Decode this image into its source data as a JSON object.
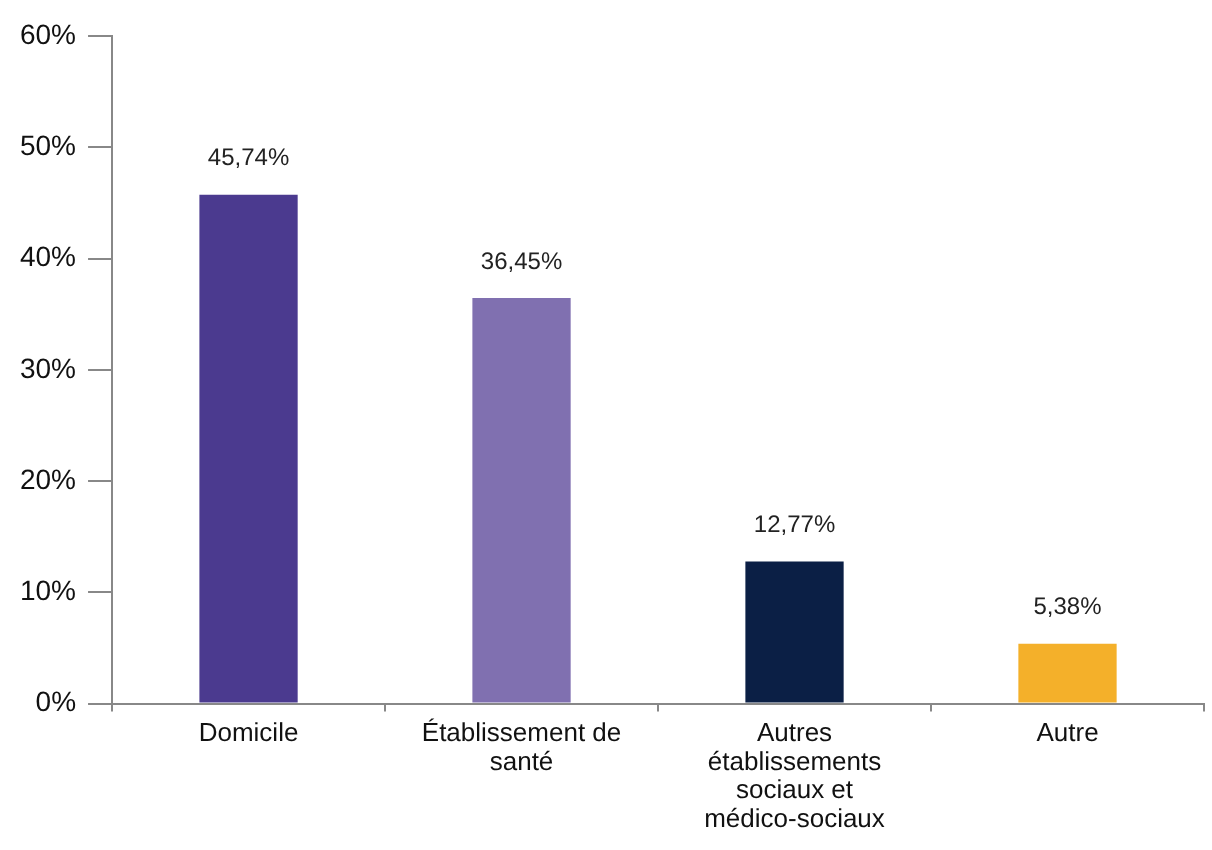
{
  "chart_data": {
    "type": "bar",
    "categories": [
      "Domicile",
      "Établissement de santé",
      "Autres établissements sociaux et médico-sociaux",
      "Autre"
    ],
    "values": [
      45.74,
      36.45,
      12.77,
      5.38
    ],
    "colors": [
      "#4b3a8f",
      "#8070b0",
      "#0b1f45",
      "#f4b02a"
    ],
    "value_labels": [
      "45,74%",
      "36,45%",
      "12,77%",
      "5,38%"
    ],
    "ylim": [
      0,
      60
    ],
    "yticks": [
      {
        "value": 0,
        "label": "0%"
      },
      {
        "value": 10,
        "label": "10%"
      },
      {
        "value": 20,
        "label": "20%"
      },
      {
        "value": 30,
        "label": "30%"
      },
      {
        "value": 40,
        "label": "40%"
      },
      {
        "value": 50,
        "label": "50%"
      },
      {
        "value": 60,
        "label": "60%"
      }
    ],
    "grid": false,
    "legend": false
  }
}
